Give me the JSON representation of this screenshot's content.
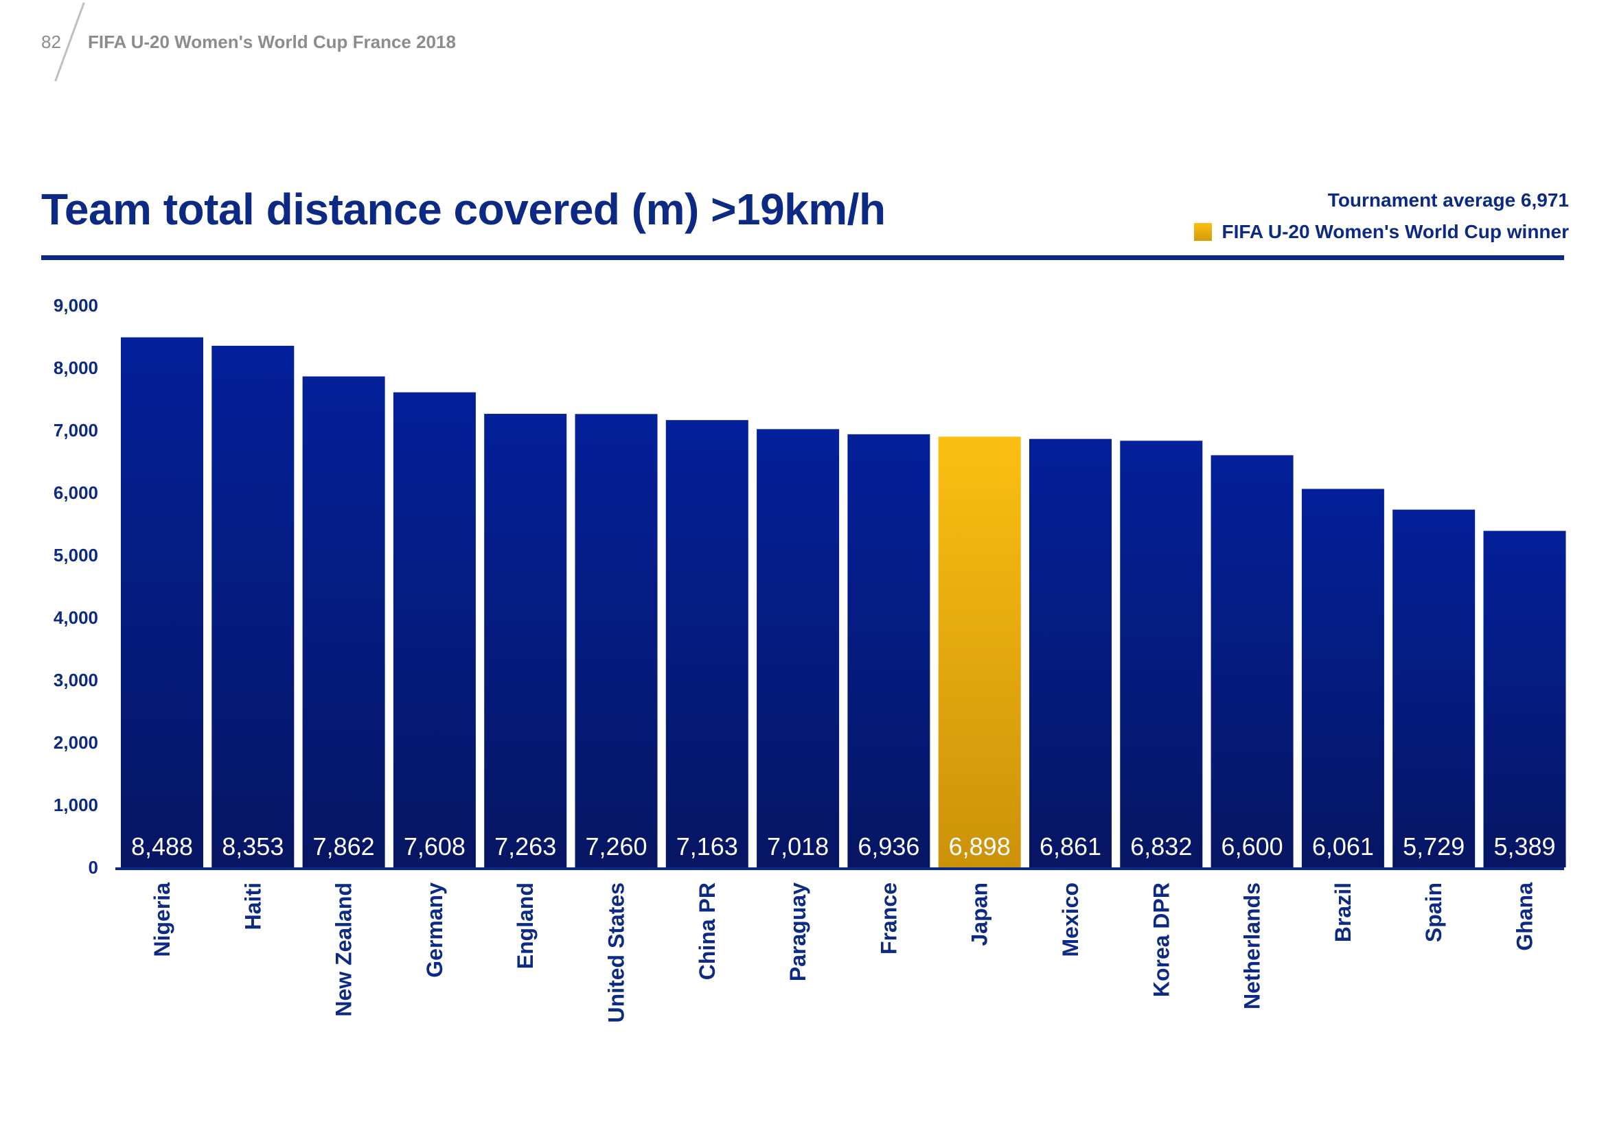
{
  "header": {
    "page_number": "82",
    "document_title": "FIFA U-20 Women's World Cup France 2018"
  },
  "legend": {
    "average_label": "Tournament average 6,971",
    "winner_label": "FIFA U-20 Women's World Cup winner"
  },
  "colors": {
    "bar_top": "#04209a",
    "bar_bottom": "#061663",
    "winner_top": "#fbbf12",
    "winner_bottom": "#cc9209",
    "axis": "#0c2a83",
    "winner_value_text": "#3a4b72"
  },
  "chart_data": {
    "type": "bar",
    "title": "Team total distance covered (m) >19km/h",
    "xlabel": "",
    "ylabel": "",
    "ylim": [
      0,
      9000
    ],
    "yticks": [
      0,
      1000,
      2000,
      3000,
      4000,
      5000,
      6000,
      7000,
      8000,
      9000
    ],
    "ytick_labels": [
      "0",
      "1,000",
      "2,000",
      "3,000",
      "4,000",
      "5,000",
      "6,000",
      "7,000",
      "8,000",
      "9,000"
    ],
    "grid": false,
    "legend_position": "top-right",
    "categories": [
      "Nigeria",
      "Haiti",
      "New Zealand",
      "Germany",
      "England",
      "United States",
      "China PR",
      "Paraguay",
      "France",
      "Japan",
      "Mexico",
      "Korea DPR",
      "Netherlands",
      "Brazil",
      "Spain",
      "Ghana"
    ],
    "values": [
      8488,
      8353,
      7862,
      7608,
      7263,
      7260,
      7163,
      7018,
      6936,
      6898,
      6861,
      6832,
      6600,
      6061,
      5729,
      5389
    ],
    "value_labels": [
      "8,488",
      "8,353",
      "7,862",
      "7,608",
      "7,263",
      "7,260",
      "7,163",
      "7,018",
      "6,936",
      "6,898",
      "6,861",
      "6,832",
      "6,600",
      "6,061",
      "5,729",
      "5,389"
    ],
    "highlight": "Japan",
    "highlight_meaning": "FIFA U-20 Women's World Cup winner",
    "tournament_average": 6971
  }
}
